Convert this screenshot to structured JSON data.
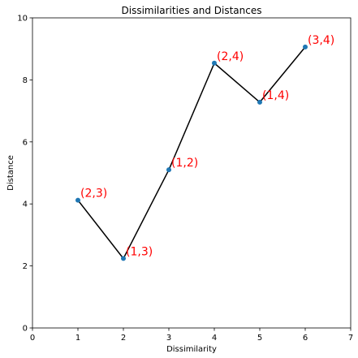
{
  "chart_data": {
    "type": "line",
    "title": "Dissimilarities and Distances",
    "xlabel": "Dissimilarity",
    "ylabel": "Distance",
    "xlim": [
      0,
      7
    ],
    "ylim": [
      0,
      10
    ],
    "xticks": [
      0,
      1,
      2,
      3,
      4,
      5,
      6,
      7
    ],
    "yticks": [
      0,
      2,
      4,
      6,
      8,
      10
    ],
    "grid": false,
    "line_color": "#000000",
    "marker_color": "#1f77b4",
    "label_color": "#ff0000",
    "points": [
      {
        "x": 1,
        "y": 4.12,
        "label": "(2,3)"
      },
      {
        "x": 2,
        "y": 2.24,
        "label": "(1,3)"
      },
      {
        "x": 3,
        "y": 5.1,
        "label": "(1,2)"
      },
      {
        "x": 4,
        "y": 8.54,
        "label": "(2,4)"
      },
      {
        "x": 5,
        "y": 7.28,
        "label": "(1,4)"
      },
      {
        "x": 6,
        "y": 9.06,
        "label": "(3,4)"
      }
    ]
  }
}
